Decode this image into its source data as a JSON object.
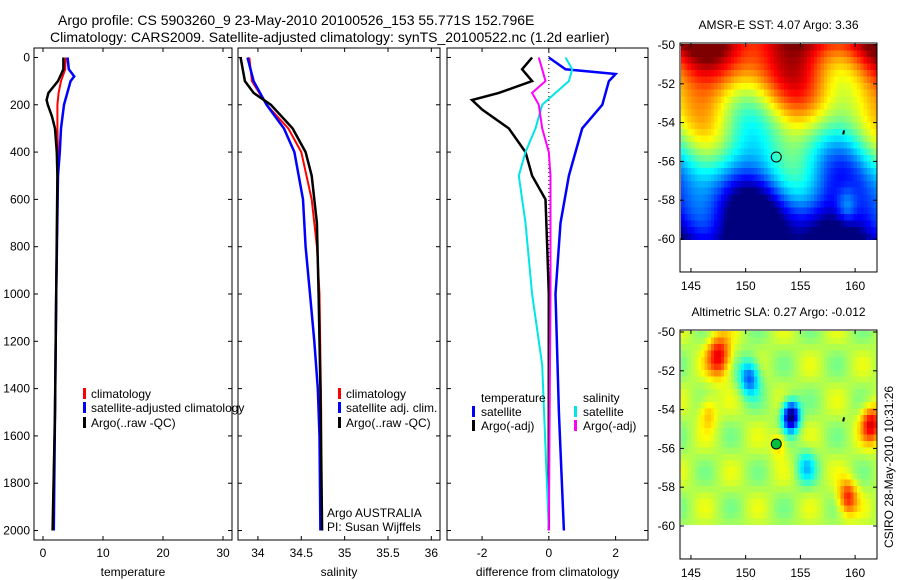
{
  "title": {
    "line1": "Argo profile: CS 5903260_9 23-May-2010 20100526_153 55.771S 152.796E",
    "line2": "Climatology: CARS2009. Satellite-adjusted climatology: synTS_20100522.nc (1.2d earlier)"
  },
  "stamp": "CSIRO 28-May-2010 10:31:26",
  "credit": {
    "line1": "Argo AUSTRALIA",
    "line2": "PI: Susan Wijffels"
  },
  "chart_data": [
    {
      "type": "line",
      "xlabel": "temperature",
      "ylabel": "",
      "xlim": [
        -1.5,
        31.5
      ],
      "ylim": [
        2040,
        -40
      ],
      "xticks": [
        "0",
        "10",
        "20",
        "30"
      ],
      "xtick_values": [
        0,
        10,
        20,
        30
      ],
      "yticks": [
        "0",
        "200",
        "400",
        "600",
        "800",
        "1000",
        "1200",
        "1400",
        "1600",
        "1800",
        "2000"
      ],
      "ytick_values": [
        0,
        200,
        400,
        600,
        800,
        1000,
        1200,
        1400,
        1600,
        1800,
        2000
      ],
      "legend": [
        "climatology",
        "satellite-adjusted climatology",
        "Argo(..raw -QC)"
      ],
      "series": [
        {
          "name": "climatology",
          "color": "#ff0000",
          "depth": [
            0,
            50,
            100,
            150,
            200,
            300,
            400,
            500,
            800,
            1000,
            1500,
            2000
          ],
          "values": [
            3.8,
            3.7,
            3.0,
            2.6,
            2.4,
            2.4,
            2.5,
            2.4,
            2.3,
            2.2,
            2.0,
            1.6
          ]
        },
        {
          "name": "satellite-adjusted climatology",
          "color": "#0000ff",
          "depth": [
            0,
            50,
            80,
            100,
            200,
            300,
            400,
            500,
            1000,
            1500,
            2000
          ],
          "values": [
            4.1,
            4.3,
            5.2,
            4.6,
            3.5,
            3.0,
            2.8,
            2.5,
            2.2,
            2.0,
            1.8
          ]
        },
        {
          "name": "Argo(..raw -QC)",
          "color": "#000000",
          "depth": [
            0,
            50,
            100,
            150,
            180,
            200,
            250,
            300,
            400,
            500,
            1000,
            1500,
            2000
          ],
          "values": [
            3.4,
            3.4,
            2.5,
            0.9,
            0.6,
            0.8,
            1.5,
            2.0,
            2.3,
            2.4,
            2.2,
            2.0,
            1.6
          ]
        }
      ]
    },
    {
      "type": "line",
      "xlabel": "salinity",
      "xlim": [
        33.77,
        36.1
      ],
      "ylim": [
        2040,
        -40
      ],
      "xticks": [
        "34",
        "34.5",
        "35",
        "35.5",
        "36"
      ],
      "xtick_values": [
        34,
        34.5,
        35,
        35.5,
        36
      ],
      "legend": [
        "climatology",
        "satellite adj. clim.",
        "Argo(..raw -QC)"
      ],
      "series": [
        {
          "name": "climatology",
          "color": "#ff0000",
          "depth": [
            0,
            100,
            200,
            300,
            400,
            600,
            800,
            1000,
            1500,
            2000
          ],
          "values": [
            33.9,
            33.93,
            34.1,
            34.35,
            34.5,
            34.62,
            34.68,
            34.71,
            34.73,
            34.73
          ]
        },
        {
          "name": "satellite adj. clim.",
          "color": "#0000ff",
          "depth": [
            0,
            100,
            200,
            300,
            400,
            600,
            800,
            1000,
            1200,
            1400,
            1600,
            2000
          ],
          "values": [
            33.88,
            33.95,
            34.1,
            34.3,
            34.42,
            34.52,
            34.55,
            34.6,
            34.65,
            34.69,
            34.71,
            34.72
          ]
        },
        {
          "name": "Argo(..raw -QC)",
          "color": "#000000",
          "depth": [
            0,
            100,
            150,
            200,
            300,
            400,
            500,
            700,
            1000,
            1400,
            2000
          ],
          "values": [
            33.8,
            33.85,
            33.95,
            34.15,
            34.4,
            34.55,
            34.62,
            34.68,
            34.7,
            34.72,
            34.74
          ]
        }
      ]
    },
    {
      "type": "line",
      "xlabel": "difference from climatology",
      "xlim": [
        -3.05,
        2.97
      ],
      "ylim": [
        2040,
        -40
      ],
      "xticks": [
        "-2",
        "0",
        "2"
      ],
      "xtick_values": [
        -2,
        0,
        2
      ],
      "legend_groups": [
        {
          "heading": "temperature",
          "items": [
            "satellite",
            "Argo(-adj)"
          ]
        },
        {
          "heading": "salinity",
          "items": [
            "satellite",
            "Argo(-adj)"
          ]
        }
      ],
      "series": [
        {
          "name": "temperature satellite",
          "color": "#0000ff",
          "depth": [
            0,
            50,
            70,
            100,
            150,
            200,
            300,
            400,
            500,
            700,
            1000,
            1500,
            2000
          ],
          "values": [
            0,
            0.5,
            2.0,
            1.8,
            1.7,
            1.6,
            1.0,
            0.8,
            0.6,
            0.35,
            0.2,
            0.3,
            0.45
          ]
        },
        {
          "name": "temperature Argo(-adj)",
          "color": "#000000",
          "depth": [
            0,
            50,
            100,
            150,
            180,
            220,
            300,
            400,
            500,
            600,
            800,
            1000,
            2000
          ],
          "values": [
            -0.5,
            -0.8,
            -0.5,
            -1.5,
            -2.3,
            -2.0,
            -1.2,
            -0.7,
            -0.5,
            -0.1,
            -0.05,
            0,
            0
          ]
        },
        {
          "name": "salinity satellite",
          "color": "#00e5e5",
          "depth": [
            0,
            50,
            100,
            150,
            200,
            300,
            400,
            500,
            700,
            1000,
            1300,
            2000
          ],
          "values": [
            0.5,
            0.7,
            0.6,
            0.2,
            -0.2,
            -0.4,
            -0.7,
            -0.9,
            -0.7,
            -0.5,
            -0.2,
            0
          ]
        },
        {
          "name": "salinity Argo(-adj)",
          "color": "#ff00ff",
          "depth": [
            0,
            50,
            100,
            150,
            200,
            300,
            400,
            500,
            1000,
            2000
          ],
          "values": [
            -0.3,
            -0.2,
            -0.1,
            -0.5,
            -0.3,
            -0.2,
            0,
            0.05,
            0.05,
            0
          ]
        }
      ]
    },
    {
      "type": "heatmap",
      "title": "AMSR-E SST: 4.07 Argo: 3.36",
      "xlim": [
        144,
        162
      ],
      "ylim": [
        -61.7,
        -50
      ],
      "xticks": [
        "145",
        "150",
        "155",
        "160"
      ],
      "xtick_values": [
        145,
        150,
        155,
        160
      ],
      "yticks": [
        "-50",
        "-52",
        "-54",
        "-56",
        "-58",
        "-60"
      ],
      "ytick_values": [
        -50,
        -52,
        -54,
        -56,
        -58,
        -60
      ],
      "marker": {
        "lon": 152.796,
        "lat": -55.771
      }
    },
    {
      "type": "heatmap",
      "title": "Altimetric SLA: 0.27 Argo: -0.012",
      "xlim": [
        144,
        162
      ],
      "ylim": [
        -61.7,
        -50
      ],
      "xticks": [
        "145",
        "150",
        "155",
        "160"
      ],
      "xtick_values": [
        145,
        150,
        155,
        160
      ],
      "yticks": [
        "-50",
        "-52",
        "-54",
        "-56",
        "-58",
        "-60"
      ],
      "ytick_values": [
        -50,
        -52,
        -54,
        -56,
        -58,
        -60
      ],
      "marker": {
        "lon": 152.796,
        "lat": -55.771
      }
    }
  ]
}
